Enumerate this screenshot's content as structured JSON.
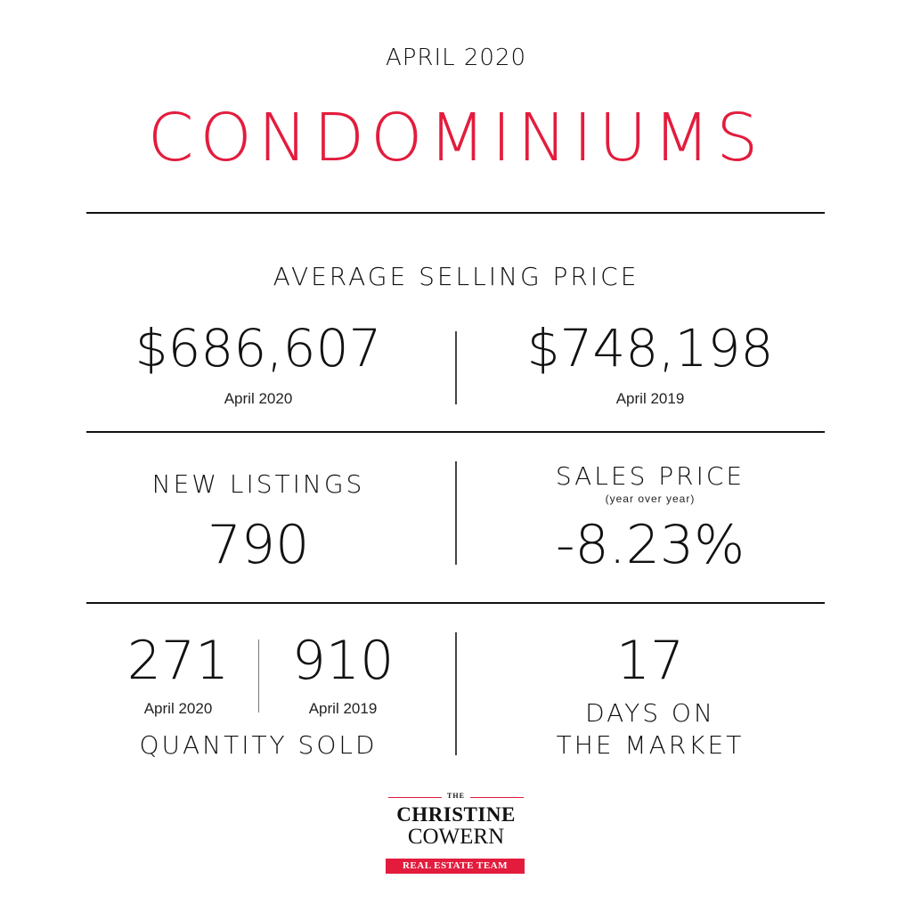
{
  "header": {
    "period": "APRIL 2020",
    "category": "CONDOMINIUMS",
    "accent_color": "#e31c3d"
  },
  "average_selling_price": {
    "heading": "AVERAGE SELLING PRICE",
    "current": {
      "value": "$686,607",
      "label": "April 2020"
    },
    "previous": {
      "value": "$748,198",
      "label": "April 2019"
    }
  },
  "new_listings": {
    "heading": "NEW LISTINGS",
    "value": "790"
  },
  "sales_price": {
    "heading": "SALES PRICE",
    "subheading": "(year over year)",
    "value": "-8.23%"
  },
  "quantity_sold": {
    "current": {
      "value": "271",
      "label": "April 2020"
    },
    "previous": {
      "value": "910",
      "label": "April 2019"
    },
    "heading": "QUANTITY SOLD"
  },
  "days_on_market": {
    "value": "17",
    "line1": "DAYS ON",
    "line2": "THE MARKET"
  },
  "logo": {
    "the": "THE",
    "name1": "CHRISTINE",
    "name2": "COWERN",
    "tagline": "REAL ESTATE TEAM"
  }
}
